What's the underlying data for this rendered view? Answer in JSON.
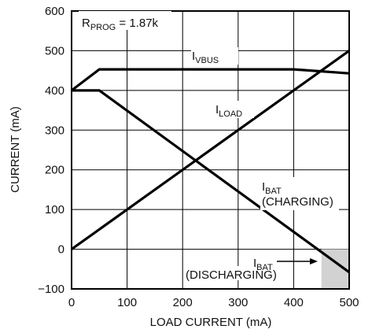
{
  "chart_data": {
    "type": "line",
    "title": "",
    "xlabel": "LOAD CURRENT (mA)",
    "ylabel": "CURRENT (mA)",
    "xlim": [
      0,
      500
    ],
    "ylim": [
      -100,
      600
    ],
    "grid": true,
    "x_ticks": [
      0,
      100,
      200,
      300,
      400,
      500
    ],
    "y_ticks": [
      -100,
      0,
      100,
      200,
      300,
      400,
      500,
      600
    ],
    "x_tick_labels": [
      "0",
      "100",
      "200",
      "300",
      "400",
      "500"
    ],
    "y_tick_labels": [
      "−100",
      "0",
      "100",
      "200",
      "300",
      "400",
      "500",
      "600"
    ],
    "series": [
      {
        "x": [
          0,
          50,
          400,
          500
        ],
        "y": [
          400,
          453,
          453,
          443
        ]
      },
      {
        "x": [
          0,
          500
        ],
        "y": [
          0,
          500
        ]
      },
      {
        "x": [
          0,
          50,
          500
        ],
        "y": [
          400,
          400,
          -58
        ]
      }
    ],
    "shaded_region": {
      "x": [
        450,
        500
      ],
      "y": [
        -100,
        0
      ],
      "color": "#d2d2d2"
    },
    "annotations": {
      "rprog": {
        "main": "R",
        "sub": "PROG",
        "tail": " = 1.87k"
      },
      "ivbus": {
        "main": "I",
        "sub": "VBUS"
      },
      "iload": {
        "main": "I",
        "sub": "LOAD"
      },
      "ibat_charging": {
        "main": "I",
        "sub": "BAT",
        "line2": "(CHARGING)"
      },
      "ibat_discharging": {
        "main": "I",
        "sub": "BAT",
        "line2": "(DISCHARGING)"
      }
    }
  }
}
